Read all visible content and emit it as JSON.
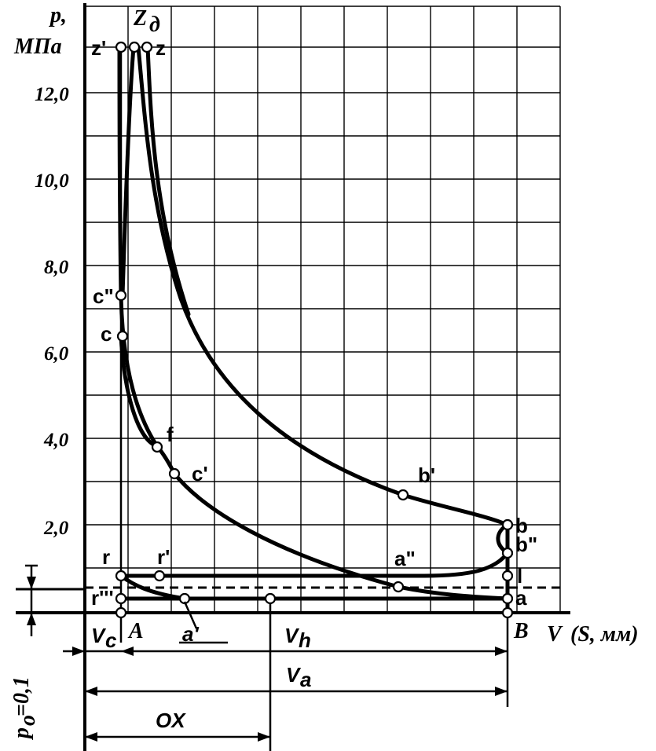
{
  "diagram": {
    "y_axis_label_line1": "p,",
    "y_axis_label_line2": "МПа",
    "y_tick_labels": [
      "12,0",
      "10,0",
      "8,0",
      "6,0",
      "4,0",
      "2,0"
    ],
    "x_axis_label_v": "V",
    "x_axis_label_s": "(S, мм)",
    "p0_label": "p",
    "p0_sub": "o",
    "p0_value": "=0,1",
    "points": {
      "z_prime": "z'",
      "z_d": "Z",
      "z_d_sub": "д",
      "z": "z",
      "c_dprime": "c\"",
      "c": "c",
      "f": "f",
      "c_prime": "c'",
      "b_prime": "b'",
      "b": "b",
      "b_dprime": "b\"",
      "r": "r",
      "r_prime": "r'",
      "a_dprime": "a\"",
      "l": "l",
      "r_tprime": "r'''",
      "a": "a",
      "a_prime": "a'",
      "A": "A",
      "B": "B"
    },
    "dimensions": {
      "vc": "V",
      "vc_sub": "c",
      "vh": "V",
      "vh_sub": "h",
      "va": "V",
      "va_sub": "a",
      "ox": "OX"
    }
  }
}
